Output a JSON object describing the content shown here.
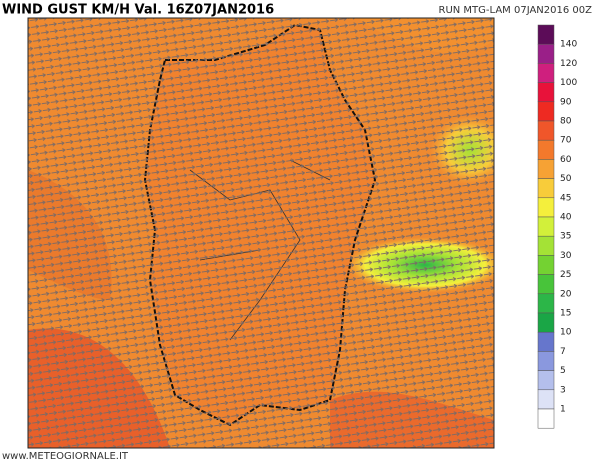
{
  "header": {
    "title": "WIND GUST KM/H Val. 16Z07JAN2016",
    "run": "RUN MTG-LAM 07JAN2016 00Z"
  },
  "legend": {
    "levels": [
      140,
      120,
      100,
      90,
      80,
      70,
      60,
      50,
      45,
      40,
      35,
      30,
      25,
      20,
      15,
      10,
      7,
      5,
      3,
      1
    ],
    "colors": [
      "#5c0c58",
      "#9a1f88",
      "#cf1f7e",
      "#e8123a",
      "#ee2a22",
      "#f0562a",
      "#f3792c",
      "#f6a234",
      "#f8cc3a",
      "#f4ef3c",
      "#d2f03a",
      "#a4e236",
      "#74d232",
      "#48c43a",
      "#2cb648",
      "#1aa646",
      "#6676cc",
      "#8a98de",
      "#b4bfec",
      "#dde2f6",
      "#ffffff"
    ]
  },
  "footer": {
    "source": "www.METEOGIORNALE.IT"
  }
}
